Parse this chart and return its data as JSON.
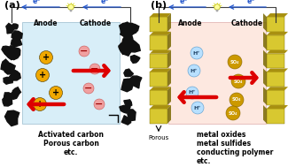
{
  "fig_width": 3.25,
  "fig_height": 1.89,
  "dpi": 100,
  "bg_color": "#ffffff",
  "panel_a": {
    "label": "(a)",
    "electrode_color": "#111111",
    "electrolyte_bg": "#d8eef8",
    "anode_label": "Anode",
    "cathode_label": "Cathode",
    "pos_ion_color": "#f0a800",
    "neg_ion_color": "#f0a0a0",
    "arrow_color": "#dd0000",
    "electron_arrow_color": "#2255cc",
    "caption_lines": [
      "Activated carbon",
      "Porous carbon",
      "etc."
    ]
  },
  "panel_b": {
    "label": "(b)",
    "electrode_face": "#d8c830",
    "electrode_dark": "#a89010",
    "electrode_shadow": "#786800",
    "electrolyte_bg": "#fde8e0",
    "anode_label": "Anode",
    "cathode_label": "Cathode",
    "h_ion_color": "#b8e0ff",
    "h_ion_border": "#5599cc",
    "so4_ion_color": "#cc9900",
    "so4_ion_border": "#886600",
    "arrow_color": "#dd0000",
    "electron_arrow_color": "#2255cc",
    "porous_label": "Porous",
    "caption_lines": [
      "metal oxides",
      "metal sulfides",
      "conducting polymer",
      "etc."
    ]
  }
}
